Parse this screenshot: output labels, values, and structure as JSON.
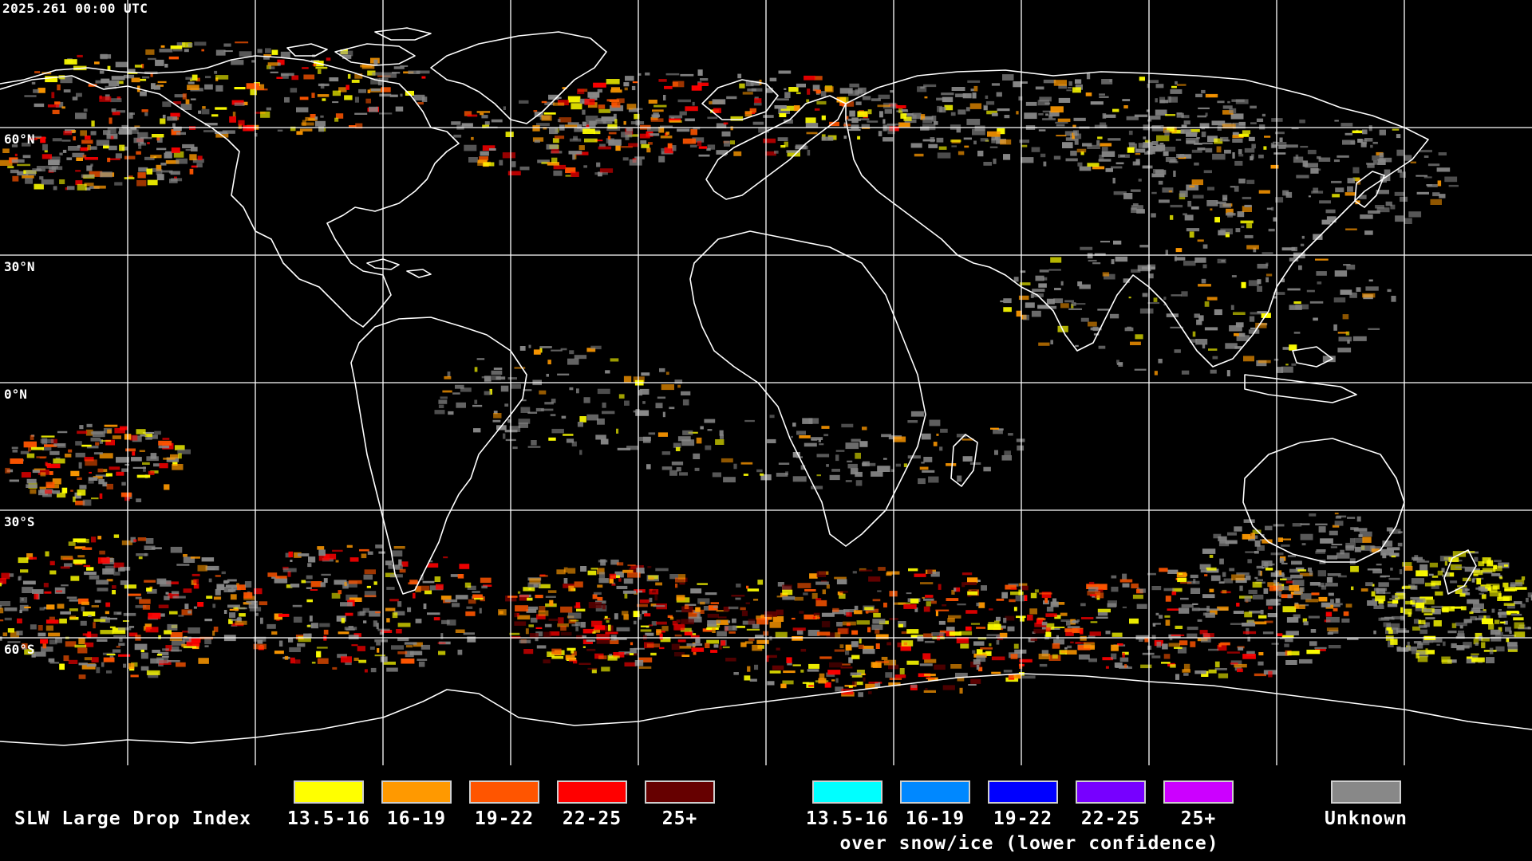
{
  "header": {
    "timestamp": "2025.261 00:00 UTC"
  },
  "map": {
    "projection": "equirectangular",
    "background_color": "#000000",
    "grid_color": "#ffffff",
    "coastline_color": "#ffffff",
    "latitude_labels": [
      "60°N",
      "30°N",
      "0°N",
      "30°S",
      "60°S"
    ]
  },
  "legend": {
    "title": "SLW Large Drop Index",
    "warm_swatches": [
      {
        "label": "13.5-16",
        "color": "#ffff00"
      },
      {
        "label": "16-19",
        "color": "#ff9900"
      },
      {
        "label": "19-22",
        "color": "#ff5500"
      },
      {
        "label": "22-25",
        "color": "#ff0000"
      },
      {
        "label": "25+",
        "color": "#660000"
      }
    ],
    "snow_swatches": [
      {
        "label": "13.5-16",
        "color": "#00ffff"
      },
      {
        "label": "16-19",
        "color": "#0088ff"
      },
      {
        "label": "19-22",
        "color": "#0000ff"
      },
      {
        "label": "22-25",
        "color": "#7700ff"
      },
      {
        "label": "25+",
        "color": "#cc00ff"
      }
    ],
    "snow_note": "over snow/ice (lower confidence)",
    "unknown": {
      "label": "Unknown",
      "color": "#888888"
    }
  }
}
